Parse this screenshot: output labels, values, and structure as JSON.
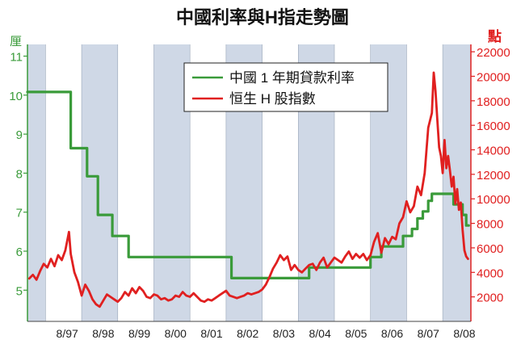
{
  "chart_data": {
    "type": "line",
    "title": "中國利率與H指走勢圖",
    "left_axis": {
      "unit_label": "厘",
      "ticks": [
        5,
        6,
        7,
        8,
        9,
        10,
        11
      ],
      "range": [
        4.2,
        11.3
      ],
      "color": "#3a9b3a"
    },
    "right_axis": {
      "unit_label": "點",
      "ticks": [
        2000,
        4000,
        6000,
        8000,
        10000,
        12000,
        14000,
        16000,
        18000,
        20000,
        22000
      ],
      "range": [
        0,
        22600
      ],
      "color": "#e02020"
    },
    "x_axis": {
      "ticks": [
        "8/97",
        "8/98",
        "8/99",
        "8/00",
        "8/01",
        "8/02",
        "8/03",
        "8/04",
        "8/05",
        "8/06",
        "8/07",
        "8/08"
      ],
      "tick_values": [
        1997.6,
        1998.6,
        1999.6,
        2000.6,
        2001.6,
        2002.6,
        2003.6,
        2004.6,
        2005.6,
        2006.6,
        2007.6,
        2008.6
      ],
      "range": [
        1996.5,
        2008.78
      ]
    },
    "shaded_bands": [
      [
        1996.5,
        1997.0
      ],
      [
        1998.0,
        1999.0
      ],
      [
        2000.0,
        2001.0
      ],
      [
        2002.0,
        2003.0
      ],
      [
        2004.0,
        2005.0
      ],
      [
        2006.0,
        2007.0
      ],
      [
        2008.0,
        2008.78
      ]
    ],
    "legend": {
      "position": "top-center",
      "entries": [
        "中國 1 年期貸款利率",
        "恒生 H 股指數"
      ]
    },
    "series": [
      {
        "name": "中國 1 年期貸款利率",
        "axis": "left",
        "color": "#3a9b3a",
        "x": [
          1996.5,
          1997.7,
          1997.7,
          1998.15,
          1998.15,
          1998.45,
          1998.45,
          1998.85,
          1998.85,
          1999.3,
          1999.3,
          1999.95,
          1999.95,
          2002.15,
          2002.15,
          2004.3,
          2004.3,
          2004.85,
          2004.85,
          2006.0,
          2006.0,
          2006.3,
          2006.3,
          2006.9,
          2006.9,
          2007.15,
          2007.15,
          2007.3,
          2007.3,
          2007.45,
          2007.45,
          2007.6,
          2007.6,
          2007.7,
          2007.7,
          2008.3,
          2008.3,
          2008.55,
          2008.55,
          2008.65,
          2008.65,
          2008.72
        ],
        "y": [
          10.08,
          10.08,
          8.64,
          8.64,
          7.92,
          7.92,
          6.93,
          6.93,
          6.39,
          6.39,
          5.85,
          5.85,
          5.85,
          5.85,
          5.31,
          5.31,
          5.58,
          5.58,
          5.58,
          5.58,
          5.85,
          5.85,
          6.12,
          6.12,
          6.39,
          6.39,
          6.57,
          6.57,
          6.84,
          6.84,
          7.02,
          7.02,
          7.29,
          7.29,
          7.47,
          7.47,
          7.2,
          7.2,
          6.93,
          6.93,
          6.66,
          6.66
        ]
      },
      {
        "name": "恒生 H 股指數",
        "axis": "right",
        "color": "#e02020",
        "x": [
          1996.55,
          1996.65,
          1996.75,
          1996.85,
          1996.95,
          1997.05,
          1997.15,
          1997.25,
          1997.35,
          1997.45,
          1997.55,
          1997.65,
          1997.7,
          1997.8,
          1997.9,
          1998.0,
          1998.1,
          1998.2,
          1998.3,
          1998.4,
          1998.5,
          1998.6,
          1998.7,
          1998.8,
          1998.9,
          1999.0,
          1999.1,
          1999.2,
          1999.3,
          1999.4,
          1999.5,
          1999.6,
          1999.7,
          1999.8,
          1999.9,
          2000.0,
          2000.1,
          2000.2,
          2000.3,
          2000.4,
          2000.5,
          2000.6,
          2000.7,
          2000.8,
          2000.9,
          2001.0,
          2001.1,
          2001.2,
          2001.3,
          2001.4,
          2001.5,
          2001.6,
          2001.7,
          2001.8,
          2001.9,
          2002.0,
          2002.1,
          2002.2,
          2002.3,
          2002.4,
          2002.5,
          2002.6,
          2002.7,
          2002.8,
          2002.9,
          2003.0,
          2003.1,
          2003.2,
          2003.3,
          2003.4,
          2003.5,
          2003.6,
          2003.7,
          2003.8,
          2003.9,
          2004.0,
          2004.1,
          2004.2,
          2004.3,
          2004.4,
          2004.5,
          2004.6,
          2004.7,
          2004.8,
          2004.9,
          2005.0,
          2005.1,
          2005.2,
          2005.3,
          2005.4,
          2005.5,
          2005.6,
          2005.7,
          2005.8,
          2005.9,
          2006.0,
          2006.1,
          2006.2,
          2006.3,
          2006.4,
          2006.5,
          2006.6,
          2006.7,
          2006.8,
          2006.9,
          2007.0,
          2007.1,
          2007.2,
          2007.3,
          2007.4,
          2007.5,
          2007.6,
          2007.7,
          2007.75,
          2007.8,
          2007.85,
          2007.9,
          2007.95,
          2008.0,
          2008.05,
          2008.1,
          2008.15,
          2008.2,
          2008.25,
          2008.3,
          2008.35,
          2008.4,
          2008.45,
          2008.5,
          2008.55,
          2008.6,
          2008.65,
          2008.7
        ],
        "y": [
          3500,
          3800,
          3400,
          4100,
          4700,
          4400,
          5100,
          4500,
          5400,
          5000,
          5800,
          7300,
          5500,
          4000,
          3200,
          2100,
          3000,
          2500,
          1800,
          1400,
          1200,
          1700,
          2200,
          2000,
          1800,
          1600,
          1900,
          2400,
          2100,
          2700,
          2300,
          2800,
          2500,
          2000,
          1900,
          2200,
          2100,
          1800,
          1900,
          1700,
          1800,
          2100,
          2000,
          2400,
          2100,
          2000,
          2300,
          2000,
          1700,
          1600,
          1800,
          1700,
          1900,
          2100,
          2300,
          2500,
          2100,
          2000,
          1900,
          2000,
          2100,
          2300,
          2200,
          2300,
          2400,
          2600,
          3000,
          3600,
          4300,
          4800,
          5400,
          5000,
          5300,
          4200,
          4600,
          4200,
          4000,
          4300,
          4600,
          4700,
          4200,
          4800,
          5200,
          4400,
          4800,
          5200,
          5000,
          4800,
          5300,
          5700,
          5100,
          5500,
          5200,
          5500,
          5000,
          5400,
          6500,
          7200,
          5600,
          6800,
          6300,
          6900,
          6700,
          8000,
          8500,
          9800,
          8900,
          9400,
          11000,
          10300,
          12100,
          15800,
          17000,
          20300,
          18800,
          16500,
          14200,
          13500,
          12100,
          14800,
          12500,
          13500,
          12300,
          11000,
          11800,
          9600,
          10800,
          9100,
          9700,
          7500,
          5800,
          5300,
          5100
        ]
      }
    ]
  }
}
